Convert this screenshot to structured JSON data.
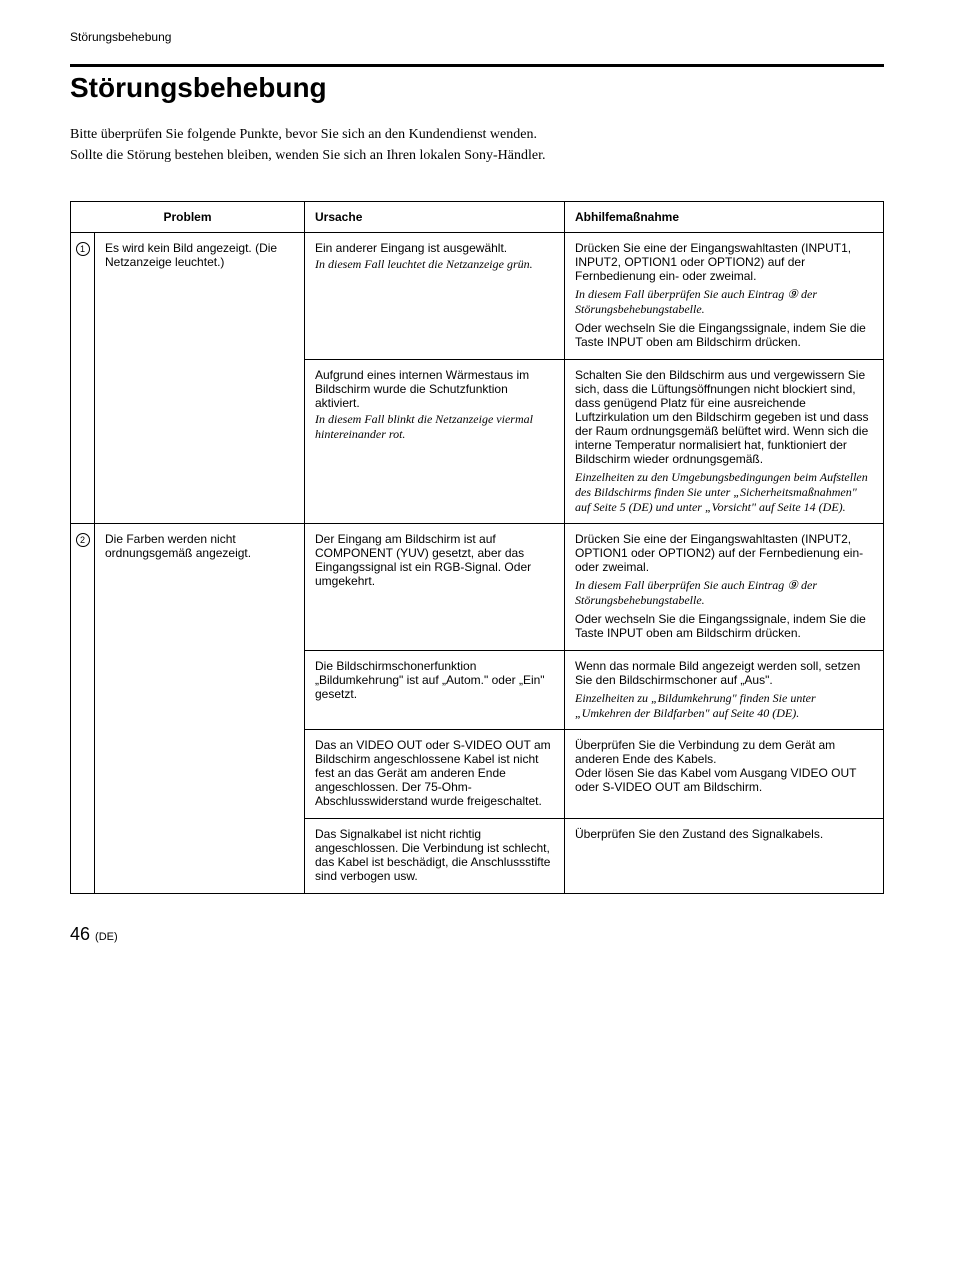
{
  "header": {
    "section_label": "Störungsbehebung"
  },
  "title": "Störungsbehebung",
  "intro": {
    "line1": "Bitte überprüfen Sie folgende Punkte, bevor Sie sich an den Kundendienst wenden.",
    "line2": "Sollte die Störung bestehen bleiben, wenden Sie sich an Ihren lokalen Sony-Händler."
  },
  "table": {
    "headers": {
      "problem": "Problem",
      "cause": "Ursache",
      "remedy": "Abhilfemaßnahme"
    },
    "rows": [
      {
        "num": "1",
        "problem": "Es wird kein Bild angezeigt. (Die Netzanzeige leuchtet.)",
        "subs": [
          {
            "cause": "Ein anderer Eingang ist ausgewählt.",
            "cause_italic": "In diesem Fall leuchtet die Netzanzeige grün.",
            "remedy": "Drücken Sie eine der Eingangswahltasten (INPUT1, INPUT2, OPTION1 oder OPTION2) auf der Fernbedienung ein- oder zweimal.",
            "remedy_italic": "In diesem Fall überprüfen Sie auch Eintrag ⑨ der Störungsbehebungstabelle.",
            "remedy2": "Oder wechseln Sie die Eingangssignale, indem Sie die Taste INPUT oben am Bildschirm drücken."
          },
          {
            "cause": "Aufgrund eines internen Wärmestaus im Bildschirm wurde die Schutzfunktion aktiviert.",
            "cause_italic": "In diesem Fall blinkt die Netzanzeige viermal hintereinander rot.",
            "remedy": "Schalten Sie den Bildschirm aus und vergewissern Sie sich, dass die Lüftungsöffnungen nicht blockiert sind, dass genügend Platz für eine ausreichende Luftzirkulation um den Bildschirm gegeben ist und dass der Raum ordnungsgemäß belüftet wird. Wenn sich die interne Temperatur normalisiert hat, funktioniert der Bildschirm wieder ordnungsgemäß.",
            "remedy_italic": "Einzelheiten zu den Umgebungsbedingungen beim Aufstellen des Bildschirms finden Sie unter „Sicherheitsmaßnahmen\" auf Seite 5 (DE) und unter „Vorsicht\" auf Seite 14 (DE)."
          }
        ]
      },
      {
        "num": "2",
        "problem": "Die Farben werden nicht ordnungsgemäß angezeigt.",
        "subs": [
          {
            "cause": "Der Eingang am Bildschirm ist auf COMPONENT (YUV) gesetzt, aber das Eingangssignal ist ein RGB-Signal. Oder umgekehrt.",
            "remedy": "Drücken Sie eine der Eingangswahltasten (INPUT2, OPTION1 oder OPTION2) auf der Fernbedienung ein- oder zweimal.",
            "remedy_italic": "In diesem Fall überprüfen Sie auch Eintrag ⑨ der Störungsbehebungstabelle.",
            "remedy2": "Oder wechseln Sie die Eingangssignale, indem Sie die Taste INPUT oben am Bildschirm drücken."
          },
          {
            "cause": "Die Bildschirmschonerfunktion „Bildumkehrung\" ist auf „Autom.\" oder „Ein\" gesetzt.",
            "remedy": "Wenn das normale Bild angezeigt werden soll, setzen Sie den Bildschirmschoner auf „Aus\".",
            "remedy_italic": "Einzelheiten zu „Bildumkehrung\" finden Sie unter „Umkehren der Bildfarben\" auf Seite 40 (DE)."
          },
          {
            "cause": "Das an VIDEO OUT oder S-VIDEO OUT am Bildschirm angeschlossene Kabel ist nicht fest an das Gerät am anderen Ende angeschlossen. Der 75-Ohm-Abschlusswiderstand wurde freigeschaltet.",
            "remedy": "Überprüfen Sie die Verbindung zu dem Gerät am anderen Ende des Kabels.\nOder lösen Sie das Kabel vom Ausgang VIDEO OUT oder S-VIDEO OUT am Bildschirm."
          },
          {
            "cause": "Das Signalkabel ist nicht richtig angeschlossen. Die Verbindung ist schlecht, das Kabel ist beschädigt, die Anschlussstifte sind verbogen usw.",
            "remedy": "Überprüfen Sie den Zustand des Signalkabels."
          }
        ]
      }
    ]
  },
  "footer": {
    "page_num": "46",
    "lang": "(DE)"
  }
}
